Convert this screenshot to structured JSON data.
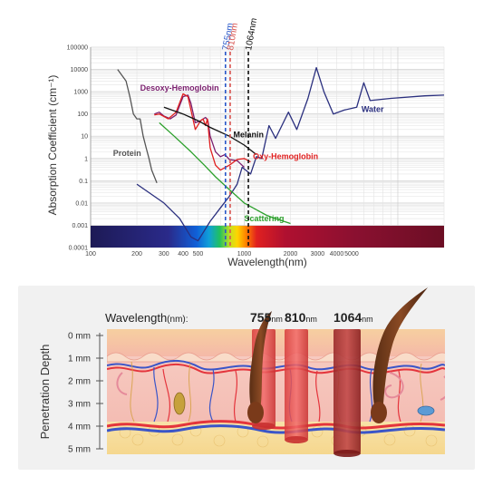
{
  "chart_data": {
    "type": "line",
    "xlabel": "Wavelength(nm)",
    "ylabel": "Absorption Coefficient (cm⁻¹)",
    "xscale": "log",
    "yscale": "log",
    "xlim": [
      100,
      20000
    ],
    "ylim": [
      0.0001,
      100000
    ],
    "x_tick_labels": [
      {
        "v": 100,
        "t": "100"
      },
      {
        "v": 200,
        "t": "200"
      },
      {
        "v": 300,
        "t": "300"
      },
      {
        "v": 400,
        "t": "400"
      },
      {
        "v": 500,
        "t": "500"
      },
      {
        "v": 1000,
        "t": "1000"
      },
      {
        "v": 2000,
        "t": "2000"
      },
      {
        "v": 3000,
        "t": "3000"
      },
      {
        "v": 4000,
        "t": "4000"
      },
      {
        "v": 5000,
        "t": "5000"
      }
    ],
    "y_tick_labels": [
      {
        "v": 100000,
        "t": "100000"
      },
      {
        "v": 10000,
        "t": "10000"
      },
      {
        "v": 1000,
        "t": "1000"
      },
      {
        "v": 100,
        "t": "100"
      },
      {
        "v": 10,
        "t": "10"
      },
      {
        "v": 1,
        "t": "1"
      },
      {
        "v": 0.1,
        "t": "0.1"
      },
      {
        "v": 0.01,
        "t": "0.01"
      },
      {
        "v": 0.001,
        "t": "0.001"
      },
      {
        "v": 0.0001,
        "t": "0.0001"
      }
    ],
    "grid": true,
    "spectrum_band": true,
    "series": [
      {
        "name": "Water",
        "color": "#2a2f7e",
        "label_at": [
          5800,
          120
        ],
        "points": [
          [
            200,
            0.07
          ],
          [
            300,
            0.01
          ],
          [
            380,
            0.002
          ],
          [
            450,
            0.0003
          ],
          [
            500,
            0.0002
          ],
          [
            600,
            0.0015
          ],
          [
            700,
            0.006
          ],
          [
            800,
            0.02
          ],
          [
            900,
            0.07
          ],
          [
            970,
            0.4
          ],
          [
            1100,
            0.2
          ],
          [
            1200,
            1.2
          ],
          [
            1300,
            1
          ],
          [
            1450,
            30
          ],
          [
            1600,
            8
          ],
          [
            1940,
            120
          ],
          [
            2200,
            20
          ],
          [
            2600,
            500
          ],
          [
            2950,
            12000
          ],
          [
            3300,
            1000
          ],
          [
            3800,
            100
          ],
          [
            4500,
            150
          ],
          [
            5400,
            200
          ],
          [
            6000,
            2500
          ],
          [
            6600,
            400
          ],
          [
            9000,
            500
          ],
          [
            15000,
            650
          ],
          [
            20000,
            700
          ]
        ]
      },
      {
        "name": "Desoxy-Hemoglobin",
        "color": "#7a1f6e",
        "label_at": [
          210,
          1100
        ],
        "points": [
          [
            260,
            100
          ],
          [
            280,
            120
          ],
          [
            300,
            80
          ],
          [
            330,
            60
          ],
          [
            360,
            90
          ],
          [
            400,
            600
          ],
          [
            430,
            700
          ],
          [
            450,
            300
          ],
          [
            480,
            40
          ],
          [
            520,
            50
          ],
          [
            560,
            70
          ],
          [
            580,
            50
          ],
          [
            600,
            10
          ],
          [
            650,
            2
          ],
          [
            700,
            1.2
          ],
          [
            750,
            1.5
          ],
          [
            800,
            0.9
          ],
          [
            900,
            0.8
          ],
          [
            1000,
            0.4
          ]
        ]
      },
      {
        "name": "Oxy-Hemoglobin",
        "color": "#e02020",
        "label_at": [
          1140,
          0.95
        ],
        "points": [
          [
            260,
            90
          ],
          [
            280,
            100
          ],
          [
            320,
            60
          ],
          [
            360,
            120
          ],
          [
            400,
            800
          ],
          [
            430,
            600
          ],
          [
            450,
            150
          ],
          [
            480,
            20
          ],
          [
            520,
            50
          ],
          [
            540,
            60
          ],
          [
            560,
            30
          ],
          [
            576,
            60
          ],
          [
            600,
            3
          ],
          [
            650,
            0.5
          ],
          [
            700,
            0.3
          ],
          [
            800,
            0.5
          ],
          [
            900,
            0.9
          ],
          [
            1000,
            1.0
          ],
          [
            1100,
            0.7
          ]
        ]
      },
      {
        "name": "Melanin",
        "color": "#111111",
        "label_at": [
          850,
          9
        ],
        "points": [
          [
            300,
            200
          ],
          [
            400,
            100
          ],
          [
            500,
            50
          ],
          [
            600,
            25
          ],
          [
            800,
            10
          ],
          [
            1000,
            4
          ],
          [
            1200,
            1.5
          ]
        ]
      },
      {
        "name": "Protein",
        "color": "#555555",
        "label_at": [
          140,
          1.3
        ],
        "points": [
          [
            150,
            10000
          ],
          [
            170,
            3000
          ],
          [
            180,
            600
          ],
          [
            190,
            100
          ],
          [
            200,
            60
          ],
          [
            210,
            60
          ],
          [
            220,
            10
          ],
          [
            230,
            3
          ],
          [
            240,
            1
          ],
          [
            250,
            0.3
          ],
          [
            270,
            0.08
          ]
        ]
      },
      {
        "name": "Scattering",
        "color": "#2ca02c",
        "label_at": [
          1000,
          0.0015
        ],
        "points": [
          [
            280,
            40
          ],
          [
            350,
            10
          ],
          [
            450,
            2
          ],
          [
            550,
            0.5
          ],
          [
            650,
            0.15
          ],
          [
            800,
            0.04
          ],
          [
            1000,
            0.01
          ],
          [
            1200,
            0.005
          ],
          [
            1400,
            0.0028
          ],
          [
            1600,
            0.002
          ],
          [
            2000,
            0.0012
          ]
        ]
      }
    ],
    "markers": [
      {
        "label": "755nm",
        "value": 755,
        "color": "#2857c9"
      },
      {
        "label": "810nm",
        "value": 810,
        "color": "#d9534f"
      },
      {
        "label": "1064nm",
        "value": 1064,
        "color": "#111111"
      }
    ]
  },
  "skin": {
    "wavelength_label": "Wavelength",
    "wavelength_unit": "(nm):",
    "y_axis_title": "Penetration Depth",
    "depth_ticks": [
      "0 mm",
      "1 mm",
      "2 mm",
      "3 mm",
      "4 mm",
      "5 mm"
    ],
    "lasers": [
      {
        "value": "755",
        "unit": "nm",
        "depth_mm": 4.0
      },
      {
        "value": "810",
        "unit": "nm",
        "depth_mm": 4.6
      },
      {
        "value": "1064",
        "unit": "nm",
        "depth_mm": 5.2
      }
    ],
    "colors": {
      "epidermis": "#f7d7a8",
      "dermis": "#f6c6c0",
      "fat": "#f7e1a6",
      "vessel_blue": "#3a55c8",
      "vessel_red": "#e4343c",
      "hair": "#6b3a1f",
      "laser": "#e04a4a"
    }
  }
}
